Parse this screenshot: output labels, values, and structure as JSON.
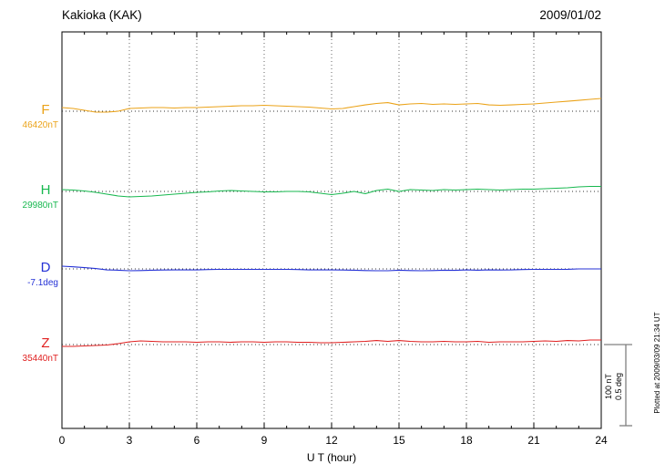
{
  "header": {
    "station": "Kakioka (KAK)",
    "date": "2009/01/02"
  },
  "axis": {
    "xlabel": "U T (hour)",
    "ticks": [
      0,
      3,
      6,
      9,
      12,
      15,
      18,
      21,
      24
    ]
  },
  "scalebar": {
    "nt": "100 nT",
    "deg": "0.5 deg"
  },
  "footer": {
    "plotted_at": "Plotted at 2009/03/09 21:34 UT"
  },
  "chart_data": {
    "type": "line",
    "title": "Kakioka (KAK)",
    "subtitle": "2009/01/02",
    "xlabel": "U T (hour)",
    "x_range": [
      0,
      24
    ],
    "grid": "vertical-dotted",
    "scale": {
      "nT_per_div": 100,
      "deg_per_div": 0.5
    },
    "x_hours": [
      0,
      0.5,
      1,
      1.5,
      2,
      2.5,
      3,
      3.5,
      4,
      4.5,
      5,
      5.5,
      6,
      6.5,
      7,
      7.5,
      8,
      8.5,
      9,
      9.5,
      10,
      10.5,
      11,
      11.5,
      12,
      12.5,
      13,
      13.5,
      14,
      14.5,
      15,
      15.5,
      16,
      16.5,
      17,
      17.5,
      18,
      18.5,
      19,
      19.5,
      20,
      20.5,
      21,
      21.5,
      22,
      22.5,
      23,
      23.5,
      24
    ],
    "series": [
      {
        "label": "F",
        "value_label": "46420nT",
        "baseline": 46420,
        "unit": "nT",
        "color": "#eba319",
        "offsets": [
          4.5,
          3.4,
          1.1,
          -1.1,
          -1.1,
          0.0,
          3.4,
          3.9,
          4.5,
          4.5,
          3.9,
          4.5,
          4.5,
          5.0,
          5.6,
          6.2,
          6.7,
          6.7,
          7.3,
          6.7,
          6.2,
          5.6,
          5.0,
          3.9,
          2.8,
          3.4,
          5.6,
          7.8,
          9.5,
          10.6,
          7.8,
          9.0,
          9.5,
          8.4,
          9.0,
          8.4,
          9.0,
          9.5,
          7.8,
          7.3,
          7.8,
          8.4,
          9.0,
          10.1,
          11.2,
          12.3,
          13.4,
          14.6,
          15.7
        ]
      },
      {
        "label": "H",
        "value_label": "29980nT",
        "baseline": 29980,
        "unit": "nT",
        "color": "#17b84f",
        "offsets": [
          2.2,
          1.7,
          0.6,
          -1.1,
          -3.4,
          -5.6,
          -6.7,
          -6.2,
          -5.6,
          -4.5,
          -3.4,
          -2.2,
          -1.1,
          -0.6,
          0.6,
          1.1,
          0.6,
          0.0,
          -0.6,
          -0.6,
          0.0,
          0.0,
          -0.6,
          -2.2,
          -3.9,
          -2.2,
          0.0,
          -2.8,
          1.1,
          2.8,
          0.0,
          2.2,
          1.7,
          1.1,
          2.2,
          1.7,
          2.2,
          2.8,
          2.2,
          1.7,
          2.2,
          2.8,
          2.8,
          3.4,
          3.9,
          4.5,
          5.6,
          6.2,
          6.2
        ]
      },
      {
        "label": "D",
        "value_label": "-7.1deg",
        "baseline": -7.1,
        "unit": "deg",
        "color": "#2431d6",
        "offsets": [
          0.017,
          0.013,
          0.008,
          0.002,
          -0.006,
          -0.008,
          -0.011,
          -0.01,
          -0.008,
          -0.007,
          -0.006,
          -0.006,
          -0.006,
          -0.004,
          -0.003,
          -0.003,
          -0.003,
          -0.003,
          -0.003,
          -0.003,
          -0.003,
          -0.004,
          -0.006,
          -0.006,
          -0.006,
          -0.007,
          -0.008,
          -0.01,
          -0.011,
          -0.011,
          -0.008,
          -0.01,
          -0.011,
          -0.01,
          -0.008,
          -0.009,
          -0.006,
          -0.008,
          -0.006,
          -0.007,
          -0.006,
          -0.004,
          -0.003,
          -0.003,
          -0.003,
          -0.002,
          0.0,
          0.0,
          0.0
        ]
      },
      {
        "label": "Z",
        "value_label": "35440nT",
        "baseline": 35440,
        "unit": "nT",
        "color": "#e02020",
        "offsets": [
          -2.2,
          -2.2,
          -1.7,
          -1.1,
          -0.6,
          1.1,
          3.4,
          4.5,
          3.9,
          3.4,
          3.4,
          3.4,
          2.8,
          3.4,
          3.4,
          2.8,
          3.4,
          3.4,
          2.8,
          3.4,
          3.4,
          2.8,
          2.8,
          2.2,
          2.2,
          2.8,
          3.4,
          3.9,
          5.0,
          3.9,
          5.0,
          3.9,
          3.4,
          3.4,
          3.9,
          3.4,
          3.4,
          3.9,
          2.8,
          3.4,
          3.4,
          3.4,
          3.9,
          4.5,
          3.9,
          5.0,
          4.5,
          5.6,
          5.6
        ]
      }
    ]
  }
}
